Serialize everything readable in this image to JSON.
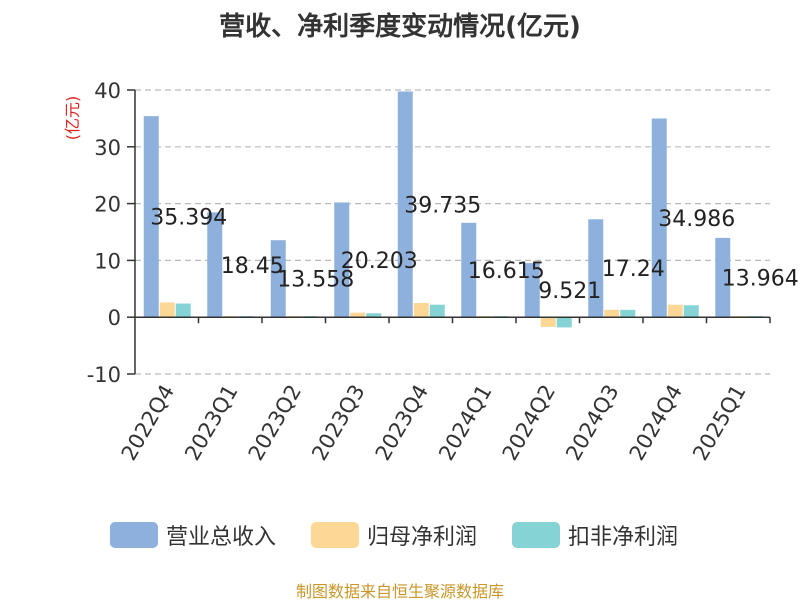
{
  "chart_data": {
    "type": "bar",
    "title": "营收、净利季度变动情况(亿元)",
    "ylabel": "(亿元)",
    "ylim": [
      -10,
      40
    ],
    "yticks": [
      -10,
      0,
      10,
      20,
      30,
      40
    ],
    "grid": true,
    "legend_position": "bottom",
    "categories": [
      "2022Q4",
      "2023Q1",
      "2023Q2",
      "2023Q3",
      "2023Q4",
      "2024Q1",
      "2024Q2",
      "2024Q3",
      "2024Q4",
      "2025Q1"
    ],
    "series": [
      {
        "name": "营业总收入",
        "color": "#8eb0dc",
        "values": [
          35.394,
          18.45,
          13.558,
          20.203,
          39.735,
          16.615,
          9.521,
          17.24,
          34.986,
          13.964
        ]
      },
      {
        "name": "归母净利润",
        "color": "#fdd796",
        "values": [
          2.6,
          0.2,
          0.2,
          0.8,
          2.5,
          0.2,
          -1.7,
          1.3,
          2.2,
          0.2
        ]
      },
      {
        "name": "扣非净利润",
        "color": "#86d3d6",
        "values": [
          2.4,
          0.2,
          0.2,
          0.7,
          2.2,
          0.2,
          -1.8,
          1.3,
          2.1,
          0.2
        ]
      }
    ],
    "data_labels": [
      "35.394",
      "18.45",
      "13.558",
      "20.203",
      "39.735",
      "16.615",
      "9.521",
      "17.24",
      "34.986",
      "13.964"
    ]
  },
  "footer": {
    "source": "制图数据来自恒生聚源数据库"
  }
}
